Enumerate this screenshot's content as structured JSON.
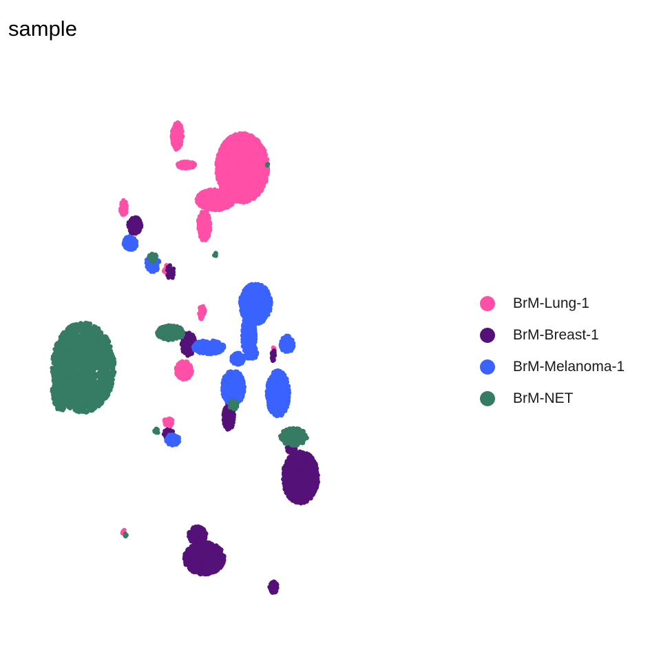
{
  "chart_data": {
    "type": "scatter",
    "title": "sample",
    "xlabel": "",
    "ylabel": "",
    "xlim": [
      0,
      100
    ],
    "ylim": [
      0,
      100
    ],
    "grid": false,
    "axes_visible": false,
    "legend_position": "right",
    "series": [
      {
        "name": "BrM-Lung-1",
        "color": "#FF4FA7",
        "clusters": [
          {
            "cx": 49.5,
            "cy": 80.5,
            "rx": 5.8,
            "ry": 6.0,
            "n": 1800
          },
          {
            "cx": 43.5,
            "cy": 75.0,
            "rx": 4.2,
            "ry": 1.8,
            "n": 500
          },
          {
            "cx": 35.0,
            "cy": 86.0,
            "rx": 1.2,
            "ry": 2.4,
            "n": 240
          },
          {
            "cx": 37.0,
            "cy": 81.0,
            "rx": 2.0,
            "ry": 0.6,
            "n": 160
          },
          {
            "cx": 41.0,
            "cy": 70.5,
            "rx": 1.4,
            "ry": 2.6,
            "n": 220
          },
          {
            "cx": 46.5,
            "cy": 75.5,
            "rx": 2.0,
            "ry": 1.0,
            "n": 120
          },
          {
            "cx": 23.0,
            "cy": 73.5,
            "rx": 0.7,
            "ry": 1.5,
            "n": 60
          },
          {
            "cx": 36.5,
            "cy": 45.5,
            "rx": 1.8,
            "ry": 1.6,
            "n": 180
          },
          {
            "cx": 40.5,
            "cy": 55.5,
            "rx": 0.7,
            "ry": 1.2,
            "n": 50
          },
          {
            "cx": 56.5,
            "cy": 48.5,
            "rx": 0.3,
            "ry": 1.0,
            "n": 18
          },
          {
            "cx": 33.0,
            "cy": 36.5,
            "rx": 1.0,
            "ry": 0.8,
            "n": 40
          },
          {
            "cx": 23.0,
            "cy": 17.5,
            "rx": 0.3,
            "ry": 0.5,
            "n": 8
          },
          {
            "cx": 32.5,
            "cy": 63.0,
            "rx": 0.6,
            "ry": 0.8,
            "n": 15
          }
        ]
      },
      {
        "name": "BrM-Breast-1",
        "color": "#541279",
        "clusters": [
          {
            "cx": 41.0,
            "cy": 13.0,
            "rx": 4.5,
            "ry": 2.8,
            "n": 900
          },
          {
            "cx": 39.5,
            "cy": 17.0,
            "rx": 2.0,
            "ry": 1.5,
            "n": 200
          },
          {
            "cx": 62.5,
            "cy": 27.0,
            "rx": 4.0,
            "ry": 4.5,
            "n": 1000
          },
          {
            "cx": 56.5,
            "cy": 8.0,
            "rx": 0.9,
            "ry": 1.0,
            "n": 70
          },
          {
            "cx": 46.5,
            "cy": 37.5,
            "rx": 1.2,
            "ry": 2.3,
            "n": 150
          },
          {
            "cx": 37.5,
            "cy": 50.0,
            "rx": 1.6,
            "ry": 2.0,
            "n": 200
          },
          {
            "cx": 25.5,
            "cy": 70.5,
            "rx": 1.5,
            "ry": 1.5,
            "n": 80
          },
          {
            "cx": 33.5,
            "cy": 62.5,
            "rx": 0.8,
            "ry": 1.2,
            "n": 30
          },
          {
            "cx": 33.0,
            "cy": 34.5,
            "rx": 1.2,
            "ry": 0.8,
            "n": 40
          },
          {
            "cx": 56.5,
            "cy": 48.0,
            "rx": 0.4,
            "ry": 1.0,
            "n": 20
          },
          {
            "cx": 60.5,
            "cy": 32.0,
            "rx": 1.0,
            "ry": 1.0,
            "n": 40
          }
        ]
      },
      {
        "name": "BrM-Melanoma-1",
        "color": "#3A62FF",
        "clusters": [
          {
            "cx": 52.5,
            "cy": 57.0,
            "rx": 3.5,
            "ry": 3.5,
            "n": 700
          },
          {
            "cx": 51.0,
            "cy": 51.5,
            "rx": 1.5,
            "ry": 4.0,
            "n": 350
          },
          {
            "cx": 47.5,
            "cy": 42.5,
            "rx": 2.5,
            "ry": 3.0,
            "n": 500
          },
          {
            "cx": 57.5,
            "cy": 41.5,
            "rx": 2.5,
            "ry": 4.0,
            "n": 600
          },
          {
            "cx": 42.0,
            "cy": 49.5,
            "rx": 3.5,
            "ry": 1.2,
            "n": 300
          },
          {
            "cx": 59.5,
            "cy": 50.0,
            "rx": 1.5,
            "ry": 1.5,
            "n": 100
          },
          {
            "cx": 24.5,
            "cy": 67.5,
            "rx": 1.5,
            "ry": 1.2,
            "n": 150
          },
          {
            "cx": 29.5,
            "cy": 64.0,
            "rx": 1.5,
            "ry": 1.5,
            "n": 120
          },
          {
            "cx": 34.0,
            "cy": 33.5,
            "rx": 1.5,
            "ry": 1.0,
            "n": 100
          },
          {
            "cx": 48.5,
            "cy": 47.5,
            "rx": 1.5,
            "ry": 1.0,
            "n": 120
          },
          {
            "cx": 52.0,
            "cy": 48.5,
            "rx": 0.8,
            "ry": 1.0,
            "n": 60
          }
        ]
      },
      {
        "name": "BrM-NET",
        "color": "#367B63",
        "clusters": [
          {
            "cx": 14.0,
            "cy": 46.0,
            "rx": 7.0,
            "ry": 7.8,
            "n": 2000
          },
          {
            "cx": 9.0,
            "cy": 42.0,
            "rx": 2.0,
            "ry": 3.5,
            "n": 200
          },
          {
            "cx": 33.5,
            "cy": 52.0,
            "rx": 3.0,
            "ry": 1.3,
            "n": 200
          },
          {
            "cx": 61.0,
            "cy": 34.0,
            "rx": 3.0,
            "ry": 1.5,
            "n": 300
          },
          {
            "cx": 47.5,
            "cy": 39.5,
            "rx": 1.0,
            "ry": 0.8,
            "n": 40
          },
          {
            "cx": 29.5,
            "cy": 65.0,
            "rx": 0.8,
            "ry": 0.8,
            "n": 30
          },
          {
            "cx": 30.5,
            "cy": 35.0,
            "rx": 0.6,
            "ry": 0.5,
            "n": 15
          },
          {
            "cx": 23.5,
            "cy": 17.0,
            "rx": 0.2,
            "ry": 0.3,
            "n": 4
          },
          {
            "cx": 43.5,
            "cy": 65.5,
            "rx": 0.3,
            "ry": 0.3,
            "n": 4
          },
          {
            "cx": 55.0,
            "cy": 81.0,
            "rx": 0.3,
            "ry": 0.3,
            "n": 4
          }
        ]
      }
    ]
  }
}
